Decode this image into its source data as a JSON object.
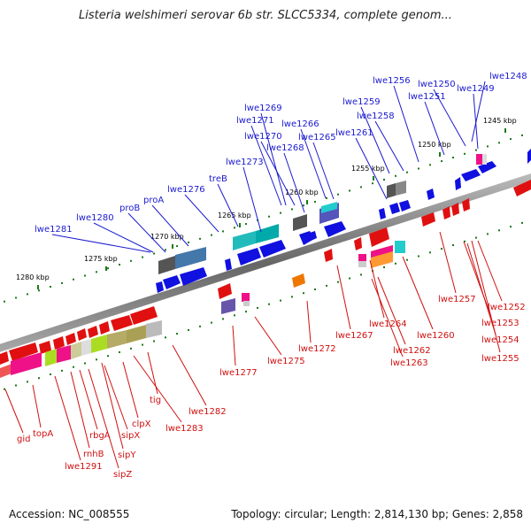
{
  "title": "Listeria welshimeri serovar 6b str. SLCC5334, complete genom...",
  "accession": "Accession: NC_008555",
  "topology": "Topology: circular; Length: 2,814,130 bp; Genes: 2,858",
  "colors": {
    "top_label": "#1a1ad0",
    "bottom_label": "#d01010",
    "forward_gene": "#1010e0",
    "reverse_gene": "#e01010",
    "tick": "#1a7a1a",
    "backbone": "#777777"
  },
  "scale": [
    {
      "text": "1245 kbp"
    },
    {
      "text": "1250 kbp"
    },
    {
      "text": "1255 kbp"
    },
    {
      "text": "1260 kbp"
    },
    {
      "text": "1265 kbp"
    },
    {
      "text": "1270 kbp"
    },
    {
      "text": "1275 kbp"
    },
    {
      "text": "1280 kbp"
    }
  ],
  "top_labels": [
    {
      "text": "lwe1248"
    },
    {
      "text": "lwe1256"
    },
    {
      "text": "lwe1250"
    },
    {
      "text": "lwe1249"
    },
    {
      "text": "lwe1251"
    },
    {
      "text": "lwe1259"
    },
    {
      "text": "lwe1258"
    },
    {
      "text": "lwe1269"
    },
    {
      "text": "lwe1271"
    },
    {
      "text": "lwe1266"
    },
    {
      "text": "lwe1261"
    },
    {
      "text": "lwe1270"
    },
    {
      "text": "lwe1265"
    },
    {
      "text": "lwe1268"
    },
    {
      "text": "lwe1273"
    },
    {
      "text": "treB"
    },
    {
      "text": "lwe1276"
    },
    {
      "text": "proA"
    },
    {
      "text": "proB"
    },
    {
      "text": "lwe1280"
    },
    {
      "text": "lwe1281"
    }
  ],
  "bottom_labels": [
    {
      "text": "lwe1252"
    },
    {
      "text": "lwe1257"
    },
    {
      "text": "lwe1253"
    },
    {
      "text": "lwe1254"
    },
    {
      "text": "lwe1255"
    },
    {
      "text": "lwe1260"
    },
    {
      "text": "lwe1264"
    },
    {
      "text": "lwe1267"
    },
    {
      "text": "lwe1262"
    },
    {
      "text": "lwe1263"
    },
    {
      "text": "lwe1272"
    },
    {
      "text": "lwe1275"
    },
    {
      "text": "lwe1277"
    },
    {
      "text": "lwe1282"
    },
    {
      "text": "tig"
    },
    {
      "text": "lwe1283"
    },
    {
      "text": "clpX"
    },
    {
      "text": "sipX"
    },
    {
      "text": "sipY"
    },
    {
      "text": "rbgA"
    },
    {
      "text": "rnhB"
    },
    {
      "text": "sipZ"
    },
    {
      "text": "lwe1291"
    },
    {
      "text": "topA"
    },
    {
      "text": "gid"
    }
  ]
}
